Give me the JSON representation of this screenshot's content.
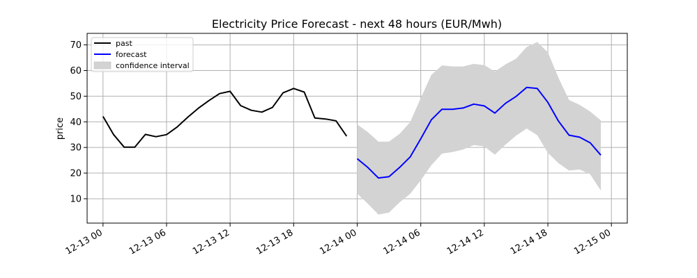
{
  "chart_data": {
    "type": "line",
    "title": "Electricity Price Forecast - next 48 hours (EUR/Mwh)",
    "xlabel": "",
    "ylabel": "price",
    "xlim": [
      "2023-12-12 22:30",
      "2023-12-15 01:30"
    ],
    "ylim": [
      0.5,
      74.5
    ],
    "x_ticks": [
      {
        "t": "2023-12-13 00:00",
        "label": "12-13 00"
      },
      {
        "t": "2023-12-13 06:00",
        "label": "12-13 06"
      },
      {
        "t": "2023-12-13 12:00",
        "label": "12-13 12"
      },
      {
        "t": "2023-12-13 18:00",
        "label": "12-13 18"
      },
      {
        "t": "2023-12-14 00:00",
        "label": "12-14 00"
      },
      {
        "t": "2023-12-14 06:00",
        "label": "12-14 06"
      },
      {
        "t": "2023-12-14 12:00",
        "label": "12-14 12"
      },
      {
        "t": "2023-12-14 18:00",
        "label": "12-14 18"
      },
      {
        "t": "2023-12-15 00:00",
        "label": "12-15 00"
      }
    ],
    "y_ticks": [
      10,
      20,
      30,
      40,
      50,
      60,
      70
    ],
    "grid": true,
    "legend_position": "top-left",
    "colors": {
      "past": "#000000",
      "forecast": "#0000ff",
      "confidence_interval": "#d3d3d3",
      "grid": "#b0b0b0"
    },
    "legend": [
      {
        "label": "past",
        "kind": "line",
        "color": "#000000"
      },
      {
        "label": "forecast",
        "kind": "line",
        "color": "#0000ff"
      },
      {
        "label": "confidence interval",
        "kind": "patch",
        "color": "#d3d3d3"
      }
    ],
    "series": [
      {
        "name": "past",
        "kind": "line",
        "color": "#000000",
        "x": [
          "2023-12-13 00:00",
          "2023-12-13 01:00",
          "2023-12-13 02:00",
          "2023-12-13 03:00",
          "2023-12-13 04:00",
          "2023-12-13 05:00",
          "2023-12-13 06:00",
          "2023-12-13 07:00",
          "2023-12-13 08:00",
          "2023-12-13 09:00",
          "2023-12-13 10:00",
          "2023-12-13 11:00",
          "2023-12-13 12:00",
          "2023-12-13 13:00",
          "2023-12-13 14:00",
          "2023-12-13 15:00",
          "2023-12-13 16:00",
          "2023-12-13 17:00",
          "2023-12-13 18:00",
          "2023-12-13 19:00",
          "2023-12-13 20:00",
          "2023-12-13 21:00",
          "2023-12-13 22:00",
          "2023-12-13 23:00"
        ],
        "y": [
          42.1,
          35.0,
          30.1,
          30.1,
          35.1,
          34.2,
          35.0,
          38.0,
          41.8,
          45.3,
          48.3,
          51.0,
          51.9,
          46.3,
          44.5,
          43.8,
          45.6,
          51.3,
          53.0,
          51.6,
          41.5,
          41.1,
          40.4,
          34.4
        ]
      },
      {
        "name": "forecast",
        "kind": "line",
        "color": "#0000ff",
        "x": [
          "2023-12-14 00:00",
          "2023-12-14 01:00",
          "2023-12-14 02:00",
          "2023-12-14 03:00",
          "2023-12-14 04:00",
          "2023-12-14 05:00",
          "2023-12-14 06:00",
          "2023-12-14 07:00",
          "2023-12-14 08:00",
          "2023-12-14 09:00",
          "2023-12-14 10:00",
          "2023-12-14 11:00",
          "2023-12-14 12:00",
          "2023-12-14 13:00",
          "2023-12-14 14:00",
          "2023-12-14 15:00",
          "2023-12-14 16:00",
          "2023-12-14 17:00",
          "2023-12-14 18:00",
          "2023-12-14 19:00",
          "2023-12-14 20:00",
          "2023-12-14 21:00",
          "2023-12-14 22:00",
          "2023-12-14 23:00"
        ],
        "y": [
          25.6,
          22.2,
          18.1,
          18.6,
          22.2,
          26.3,
          33.4,
          40.8,
          44.9,
          44.9,
          45.4,
          46.9,
          46.2,
          43.4,
          47.2,
          49.9,
          53.4,
          53.0,
          47.6,
          40.3,
          34.8,
          34.0,
          31.8,
          27.0
        ]
      },
      {
        "name": "confidence interval",
        "kind": "band",
        "color": "#d3d3d3",
        "x": [
          "2023-12-14 00:00",
          "2023-12-14 01:00",
          "2023-12-14 02:00",
          "2023-12-14 03:00",
          "2023-12-14 04:00",
          "2023-12-14 05:00",
          "2023-12-14 06:00",
          "2023-12-14 07:00",
          "2023-12-14 08:00",
          "2023-12-14 09:00",
          "2023-12-14 10:00",
          "2023-12-14 11:00",
          "2023-12-14 12:00",
          "2023-12-14 13:00",
          "2023-12-14 14:00",
          "2023-12-14 15:00",
          "2023-12-14 16:00",
          "2023-12-14 17:00",
          "2023-12-14 18:00",
          "2023-12-14 19:00",
          "2023-12-14 20:00",
          "2023-12-14 21:00",
          "2023-12-14 22:00",
          "2023-12-14 23:00"
        ],
        "upper": [
          39.0,
          36.0,
          32.3,
          32.3,
          35.3,
          39.9,
          49.3,
          58.3,
          62.0,
          61.6,
          61.6,
          62.6,
          62.1,
          59.6,
          62.4,
          64.6,
          69.2,
          71.1,
          67.1,
          57.2,
          48.5,
          46.6,
          44.0,
          40.6
        ],
        "lower": [
          12.0,
          8.1,
          3.8,
          4.6,
          8.6,
          11.9,
          17.2,
          23.1,
          27.6,
          28.2,
          29.2,
          30.9,
          30.4,
          27.2,
          31.1,
          34.6,
          37.4,
          34.8,
          27.9,
          23.9,
          21.0,
          21.4,
          19.5,
          13.2
        ]
      }
    ]
  }
}
